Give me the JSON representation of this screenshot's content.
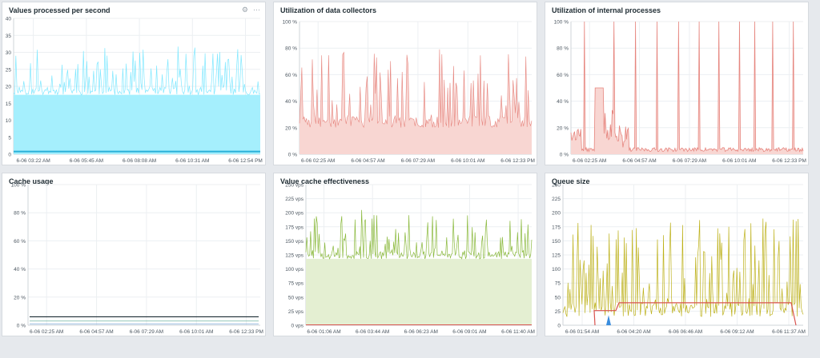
{
  "dashboard": {
    "icons": {
      "settings": "gear-icon",
      "menu": "more-icon"
    },
    "icon_glyphs": {
      "gear": "⚙",
      "more": "⋯"
    }
  },
  "chart_data": [
    {
      "id": "vps",
      "type": "area",
      "title": "Values processed per second",
      "y_ticks": [
        "0",
        "5",
        "10",
        "15",
        "20",
        "25",
        "30",
        "35",
        "40"
      ],
      "ylim": [
        0,
        40
      ],
      "x_ticks": [
        "6-06 03:22 AM",
        "6-06 05:45 AM",
        "6-06 08:08 AM",
        "6-06 10:31 AM",
        "6-06 12:54 PM"
      ],
      "series": [
        {
          "color": "#80e8ff",
          "fill": "#a5effd",
          "approx_range": [
            16,
            32
          ],
          "baseline": 17.5
        },
        {
          "color": "#29b0d8",
          "approx_level": 0.8
        }
      ]
    },
    {
      "id": "collectors",
      "type": "area",
      "title": "Utilization of data collectors",
      "y_ticks": [
        "0 %",
        "20 %",
        "40 %",
        "60 %",
        "80 %",
        "100 %"
      ],
      "ylim": [
        0,
        100
      ],
      "x_ticks": [
        "6-06 02:25 AM",
        "6-06 04:57 AM",
        "6-06 07:29 AM",
        "6-06 10:01 AM",
        "6-06 12:33 PM"
      ],
      "series": [
        {
          "color": "#e6857e",
          "fill": "#f8d6d2",
          "approx_range": [
            15,
            80
          ],
          "baseline": 20
        }
      ]
    },
    {
      "id": "internal",
      "type": "area",
      "title": "Utilization of internal processes",
      "y_ticks": [
        "0 %",
        "20 %",
        "40 %",
        "60 %",
        "80 %",
        "100 %"
      ],
      "ylim": [
        0,
        100
      ],
      "x_ticks": [
        "6-06 02:25 AM",
        "6-06 04:57 AM",
        "6-06 07:29 AM",
        "6-06 10:01 AM",
        "6-06 12:33 PM"
      ],
      "series": [
        {
          "color": "#e6857e",
          "fill": "#f8d6d2",
          "spike_peak": 100,
          "block_level": 50
        }
      ]
    },
    {
      "id": "cache",
      "type": "line",
      "title": "Cache usage",
      "y_ticks": [
        "0 %",
        "20 %",
        "40 %",
        "60 %",
        "80 %",
        "100 %"
      ],
      "ylim": [
        0,
        100
      ],
      "x_ticks": [
        "6-06 02:25 AM",
        "6-06 04:57 AM",
        "6-06 07:29 AM",
        "6-06 10:01 AM",
        "6-06 12:33 PM"
      ],
      "series": [
        {
          "color": "#1b2b33",
          "approx_level": 6
        },
        {
          "color": "#6fb5a0",
          "approx_level": 3
        },
        {
          "color": "#7aa6d6",
          "approx_level": 1
        }
      ]
    },
    {
      "id": "valuecache",
      "type": "area",
      "title": "Value cache effectiveness",
      "y_ticks": [
        "0 vps",
        "25 vps",
        "50 vps",
        "75 vps",
        "100 vps",
        "125 vps",
        "150 vps",
        "175 vps",
        "200 vps",
        "225 vps",
        "250 vps"
      ],
      "ylim": [
        0,
        250
      ],
      "x_ticks": [
        "6-06 01:06 AM",
        "6-06 03:44 AM",
        "6-06 06:23 AM",
        "6-06 09:01 AM",
        "6-06 11:40 AM"
      ],
      "series": [
        {
          "color": "#8ab93c",
          "fill": "#e4efd2",
          "approx_range": [
            110,
            205
          ],
          "baseline": 118
        },
        {
          "color": "#d9534f",
          "approx_level": 0
        }
      ]
    },
    {
      "id": "queue",
      "type": "line",
      "title": "Queue size",
      "y_ticks": [
        "0",
        "25",
        "50",
        "75",
        "100",
        "125",
        "150",
        "175",
        "200",
        "225",
        "250"
      ],
      "ylim": [
        0,
        250
      ],
      "x_ticks": [
        "6-06 01:54 AM",
        "6-06 04:20 AM",
        "6-06 06:46 AM",
        "6-06 09:12 AM",
        "6-06 11:37 AM"
      ],
      "series": [
        {
          "color": "#bdb11a",
          "approx_range": [
            0,
            190
          ],
          "baseline": 15
        },
        {
          "color": "#d9534f",
          "approx_level": 40
        },
        {
          "color": "#3a8dde",
          "spike_peak": 18
        }
      ]
    }
  ]
}
